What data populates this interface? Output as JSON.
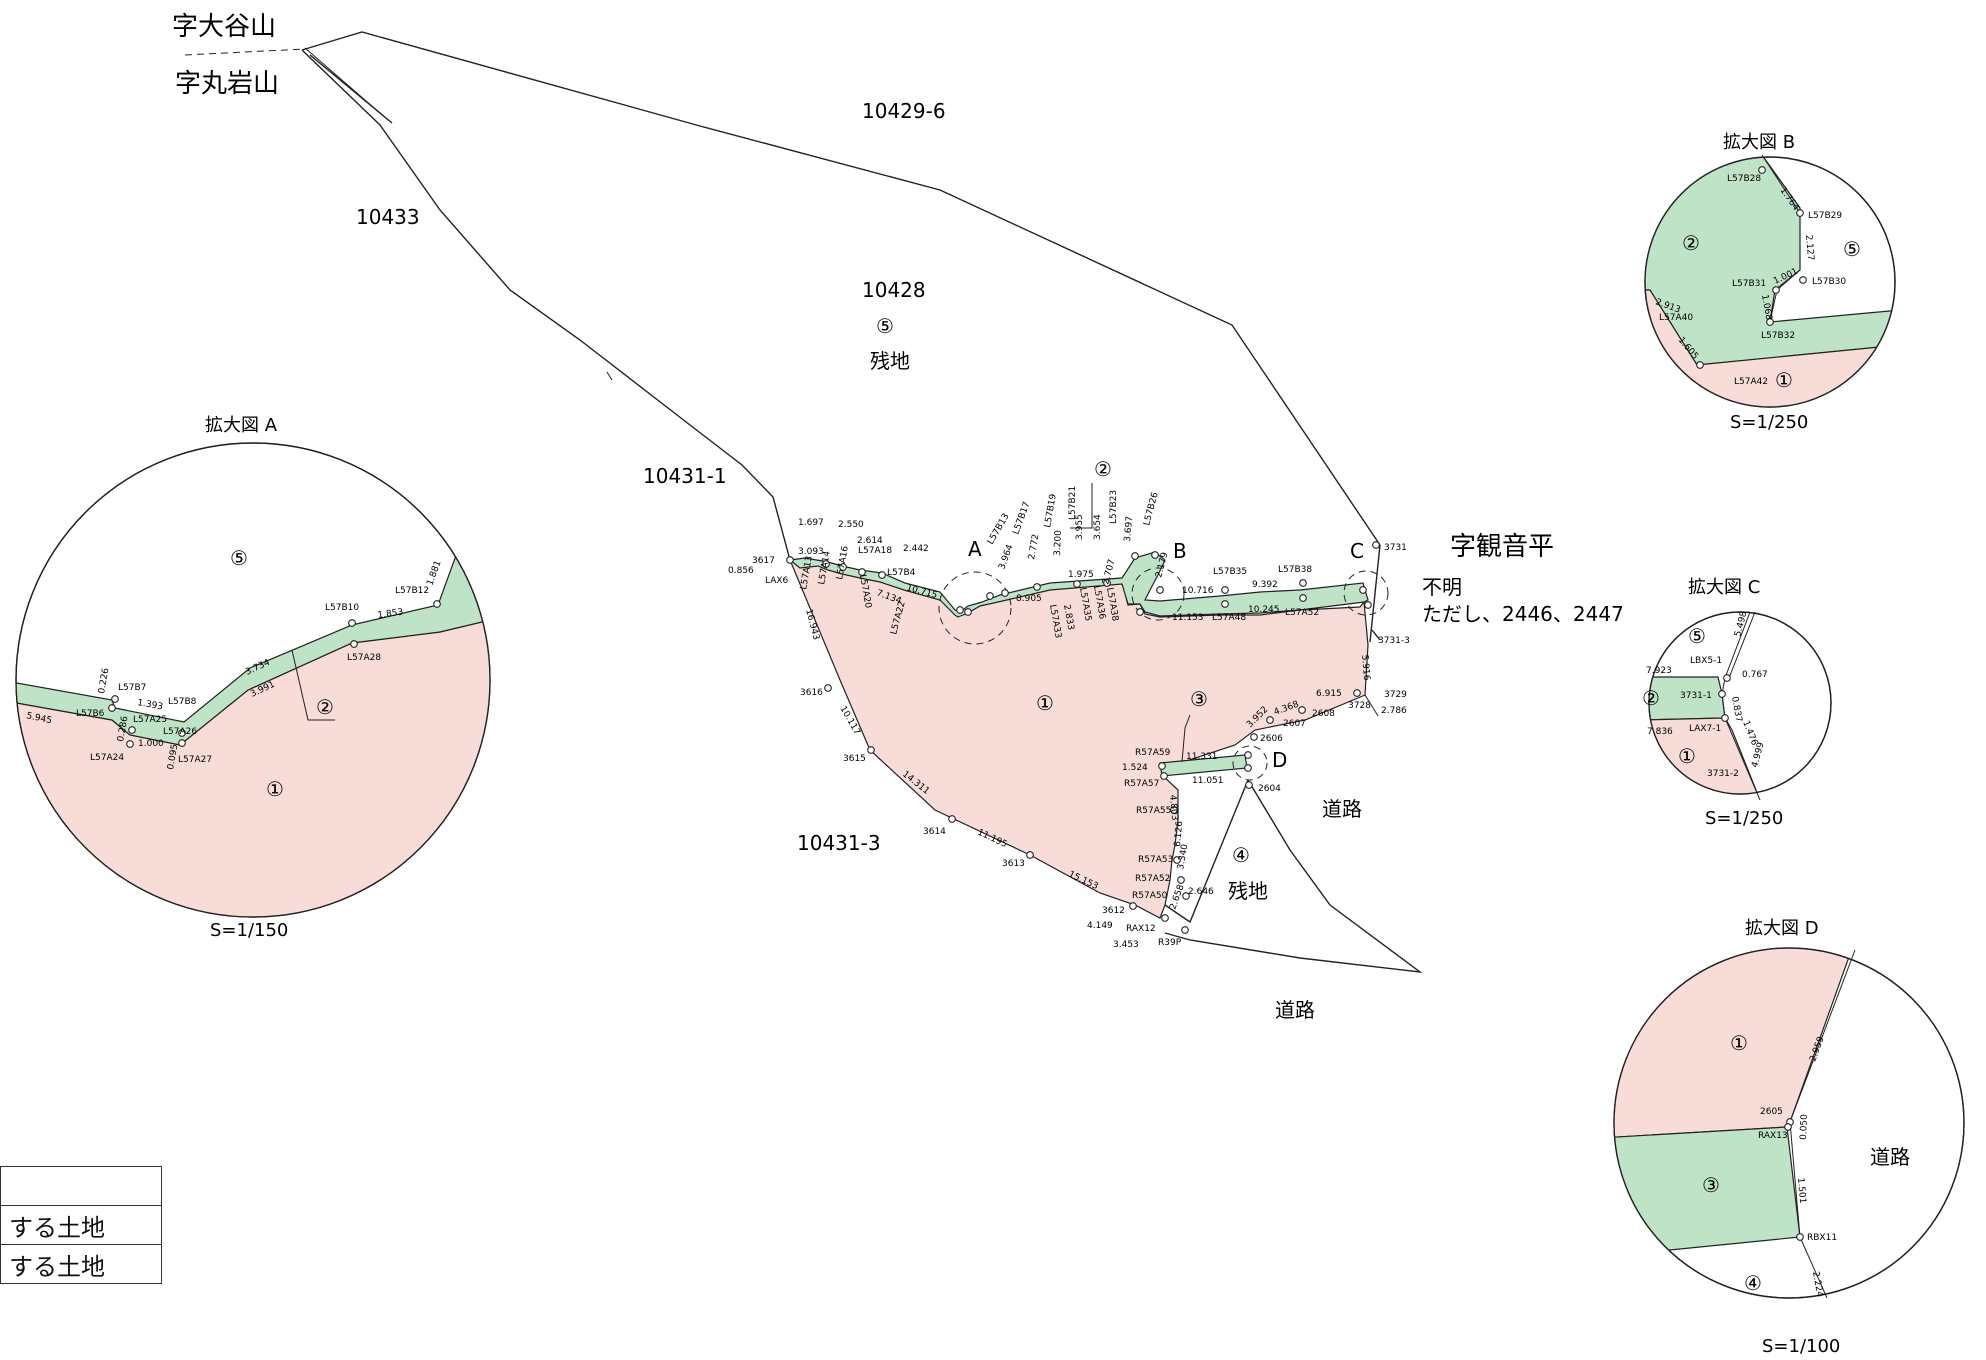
{
  "district_labels": {
    "north_upper": "字大谷山",
    "north_lower": "字丸岩山",
    "east": "字観音平"
  },
  "parcels": {
    "p10429_6": "10429-6",
    "p10433": "10433",
    "p10428": "10428",
    "p10431_1": "10431-1",
    "p10431_3": "10431-3"
  },
  "zone_numbers": {
    "one": "①",
    "two": "②",
    "three": "③",
    "four": "④",
    "five": "⑤"
  },
  "remaining_land": "残地",
  "road": "道路",
  "unknown_note": {
    "line1": "不明",
    "line2": "ただし、2446、2447"
  },
  "detail_markers": [
    "A",
    "B",
    "C",
    "D"
  ],
  "insets": {
    "A": {
      "title": "拡大図 A",
      "scale": "S=1/150"
    },
    "B": {
      "title": "拡大図 B",
      "scale": "S=1/250"
    },
    "C": {
      "title": "拡大図 C",
      "scale": "S=1/250"
    },
    "D": {
      "title": "拡大図 D",
      "scale": "S=1/100"
    }
  },
  "legend": {
    "row1": "",
    "row2": "する土地",
    "row3": "する土地"
  },
  "main_points": {
    "LAX6": "LAX6",
    "p3617": "3617",
    "p3616": "3616",
    "p3615": "3615",
    "p3614": "3614",
    "p3613": "3613",
    "p3612": "3612",
    "RAX12": "RAX12",
    "R39P": "R39P",
    "R57A50": "R57A50",
    "R57A52": "R57A52",
    "R57A53": "R57A53",
    "R57A55": "R57A55",
    "R57A57": "R57A57",
    "R57A59": "R57A59",
    "p2604": "2604",
    "p2606": "2606",
    "p2607": "2607",
    "p2608": "2608",
    "p3728": "3728",
    "p3729": "3729",
    "p3731_3": "3731-3",
    "p3731": "3731",
    "L57B35": "L57B35",
    "L57B38": "L57B38",
    "L57A48": "L57A48",
    "L57A52": "L57A52",
    "L57A13": "L57A13",
    "L57A14": "L57A14",
    "L57A16": "L57A16",
    "L57A18": "L57A18",
    "L57A20": "L57A20",
    "L57B4": "L57B4",
    "L57A22": "L57A22",
    "L57A33": "L57A33",
    "L57A35": "L57A35",
    "L57A36": "L57A36",
    "L57A38": "L57A38",
    "L57B13": "L57B13",
    "L57B17": "L57B17",
    "L57B19": "L57B19",
    "L57B21": "L57B21",
    "L57B23": "L57B23",
    "L57B26": "L57B26"
  },
  "main_distances": {
    "d0856": "0.856",
    "d1697": "1.697",
    "d3093": "3.093",
    "d2550": "2.550",
    "d2614": "2.614",
    "d2442": "2.442",
    "d10715": "10.715",
    "d7134": "7.134",
    "d16943": "16.943",
    "d10117": "10.117",
    "d14311": "14.311",
    "d11195": "11.195",
    "d15153": "15.153",
    "d4149": "4.149",
    "d3453": "3.453",
    "d2658": "2.658",
    "d2646": "2.646",
    "d3340": "3.340",
    "d6126": "6.126",
    "d4803": "4.803",
    "d1524": "1.524",
    "d11331": "11.331",
    "d11051": "11.051",
    "d3952": "3.952",
    "d4368": "4.368",
    "d6915": "6.915",
    "d2786": "2.786",
    "d5916": "5.916",
    "d10245": "10.245",
    "d11153": "11.153",
    "d10716": "10.716",
    "d9392": "9.392",
    "d8905": "8.905",
    "d1975": "1.975",
    "d3654": "3.654",
    "d3697": "3.697",
    "d2179": "2.179",
    "d2707": "2.707",
    "d2833": "2.833",
    "d3964": "3.964",
    "d2772": "2.772",
    "d3200": "3.200",
    "d3955": "3.955"
  },
  "inset_A_labels": {
    "L57B7": "L57B7",
    "L57B6": "L57B6",
    "L57B8": "L57B8",
    "L57A25": "L57A25",
    "L57A26": "L57A26",
    "L57A24": "L57A24",
    "L57A27": "L57A27",
    "L57B10": "L57B10",
    "L57B12": "L57B12",
    "L57A28": "L57A28",
    "d0226": "0.226",
    "d1393": "1.393",
    "d5945": "5.945",
    "d0286": "0.286",
    "d1000": "1.000",
    "d0095": "0.095",
    "d3734": "3.734",
    "d3991": "3.991",
    "d1853": "1.853",
    "d1881": "1.881"
  },
  "inset_B_labels": {
    "L57B28": "L57B28",
    "L57B29": "L57B29",
    "L57B31": "L57B31",
    "L57B30": "L57B30",
    "L57A40": "L57A40",
    "L57B32": "L57B32",
    "L57A42": "L57A42",
    "d1764": "1.764",
    "d2127": "2.127",
    "d1001": "1.001",
    "d1068": "1.068",
    "d2913": "2.913",
    "d1605": "1.605"
  },
  "inset_C_labels": {
    "LBX5_1": "LBX5-1",
    "p3731_1": "3731-1",
    "LAX7_1": "LAX7-1",
    "p3731_2": "3731-2",
    "d5498": "5.498",
    "d7923": "7.923",
    "d0767": "0.767",
    "d0837": "0.837",
    "d7836": "7.836",
    "d1476": "1.476",
    "d4999": "4.999"
  },
  "inset_D_labels": {
    "p2605": "2605",
    "RAX13": "RAX13",
    "RBX11": "RBX11",
    "d2959": "2.959",
    "d0050": "0.050",
    "d1501": "1.501",
    "d2224": "2.224"
  }
}
